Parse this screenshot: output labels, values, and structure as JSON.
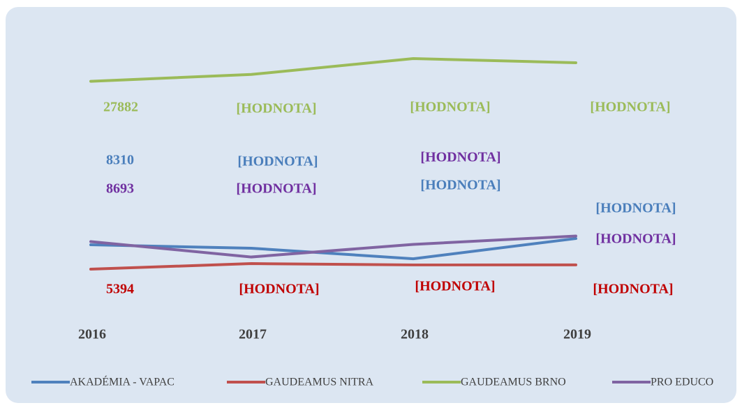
{
  "chart_data": {
    "type": "line",
    "categories": [
      "2016",
      "2017",
      "2018",
      "2019"
    ],
    "series": [
      {
        "name": "AKADÉMIA - VAPAC",
        "color": "#4f81bd",
        "label_color": "#4a7ebb",
        "values": [
          8310,
          7900,
          6640,
          9060
        ],
        "value_labels": [
          "8310",
          "[HODNOTA]",
          "[HODNOTA]",
          "[HODNOTA]"
        ]
      },
      {
        "name": "GAUDEAMUS NITRA",
        "color": "#c0504d",
        "label_color": "#c00000",
        "values": [
          5394,
          6060,
          5900,
          5900
        ],
        "value_labels": [
          "5394",
          "[HODNOTA]",
          "[HODNOTA]",
          "[HODNOTA]"
        ]
      },
      {
        "name": "GAUDEAMUS BRNO",
        "color": "#9bbb59",
        "label_color": "#9bbb59",
        "values": [
          27882,
          28700,
          30600,
          30100
        ],
        "value_labels": [
          "27882",
          "[HODNOTA]",
          "[HODNOTA]",
          "[HODNOTA]"
        ]
      },
      {
        "name": "PRO EDUCO",
        "color": "#8064a2",
        "label_color": "#7030a0",
        "values": [
          8693,
          6850,
          8360,
          9360
        ],
        "value_labels": [
          "8693",
          "[HODNOTA]",
          "[HODNOTA]",
          "[HODNOTA]"
        ]
      }
    ],
    "legend": "bottom"
  }
}
